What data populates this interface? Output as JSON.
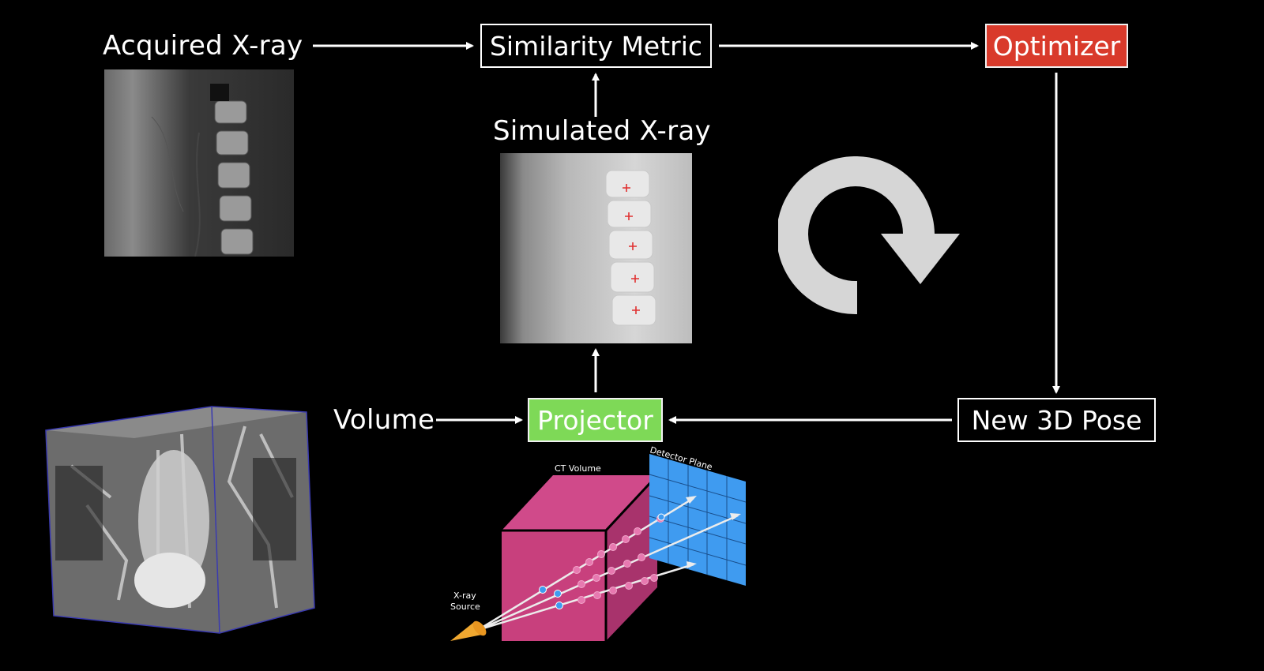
{
  "labels": {
    "acquired": "Acquired X-ray",
    "simulated": "Simulated X-ray",
    "volume": "Volume"
  },
  "boxes": {
    "similarity": "Similarity Metric",
    "optimizer": "Optimizer",
    "projector": "Projector",
    "pose": "New 3D Pose"
  },
  "schematic": {
    "ct_volume": "CT Volume",
    "detector_plane": "Detector Plane",
    "source_line1": "X-ray",
    "source_line2": "Source"
  },
  "colors": {
    "optimizer": "#d93a2b",
    "projector": "#7ed957",
    "ct_volume": "#c8407d",
    "detector": "#3f9bf0",
    "loop_arrow": "#d6d6d6",
    "landmark": "#e03030"
  },
  "icons": {
    "loop": "circular-arrow-icon"
  }
}
